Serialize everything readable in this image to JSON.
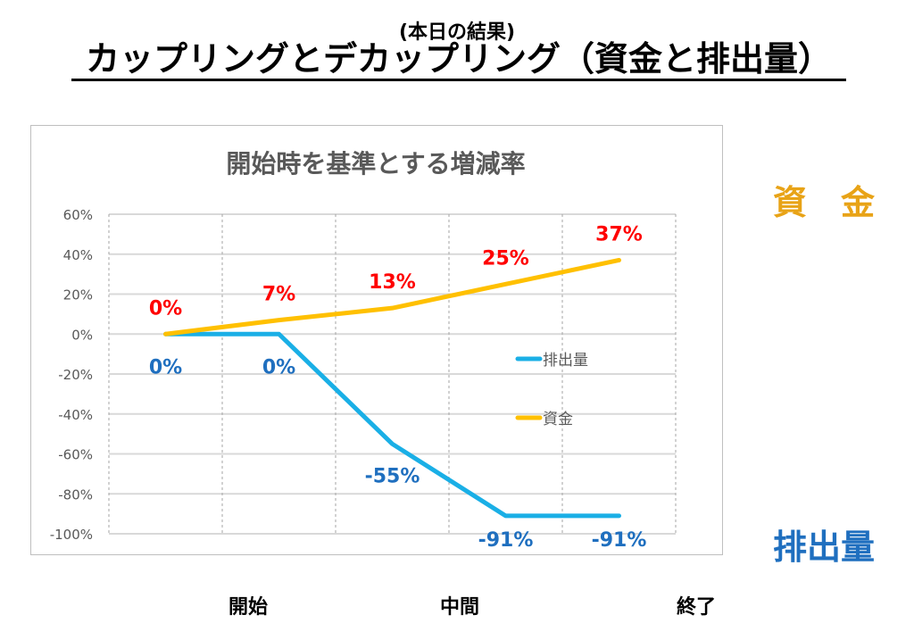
{
  "header": {
    "subtitle": "(本日の結果)",
    "title": "カップリングとデカップリング（資金と排出量）"
  },
  "side_labels": {
    "fund": "資　金",
    "emission": "排出量"
  },
  "bottom_labels": [
    {
      "label": "開始",
      "x": 1
    },
    {
      "label": "中間",
      "x": 3
    },
    {
      "label": "終了",
      "x": 5
    }
  ],
  "chart_data": {
    "type": "line",
    "title": "開始時を基準とする増減率",
    "xlabel": "",
    "ylabel": "",
    "ylim": [
      -100,
      60
    ],
    "yticks": [
      60,
      40,
      20,
      0,
      -20,
      -40,
      -60,
      -80,
      -100
    ],
    "ytick_labels": [
      "60%",
      "40%",
      "20%",
      "0%",
      "-20%",
      "-40%",
      "-60%",
      "-80%",
      "-100%"
    ],
    "x": [
      1,
      2,
      3,
      4,
      5
    ],
    "grid": true,
    "legend_position": "right",
    "series": [
      {
        "name": "排出量",
        "values": [
          0,
          0,
          -55,
          -91,
          -91
        ],
        "labels": [
          "0%",
          "0%",
          "-55%",
          "-91%",
          "-91%"
        ],
        "color": "#1AAFE6",
        "label_color": "#1F6FBF"
      },
      {
        "name": "資金",
        "values": [
          0,
          7,
          13,
          25,
          37
        ],
        "labels": [
          "0%",
          "7%",
          "13%",
          "25%",
          "37%"
        ],
        "color": "#FFC000",
        "label_color": "#FF0000"
      }
    ]
  },
  "colors": {
    "fund_side": "#E8A317",
    "emission_side": "#1F6FBF"
  }
}
